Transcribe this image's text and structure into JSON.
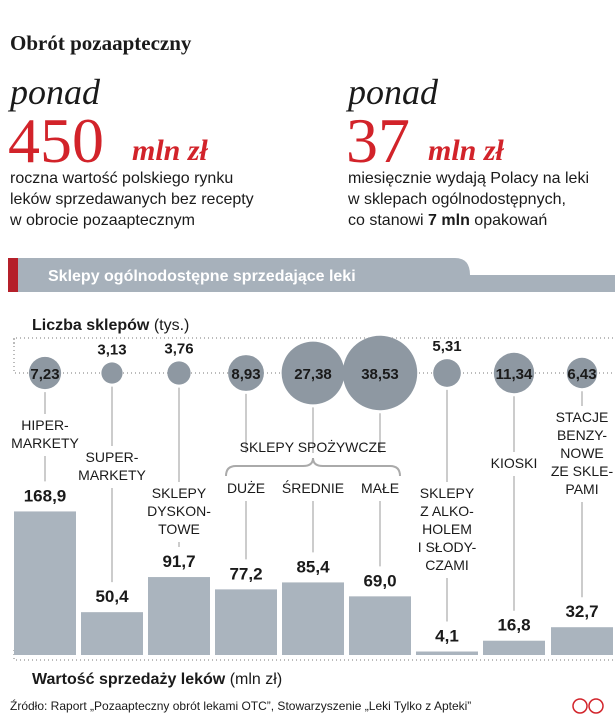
{
  "header": {
    "title": "Obrót pozaapteczny"
  },
  "stats": [
    {
      "prefix": "ponad",
      "number": "450",
      "unit": "mln zł",
      "lines": [
        "roczna wartość polskiego rynku",
        "leków sprzedawanych bez recepty",
        "w obrocie pozaaptecznym"
      ]
    },
    {
      "prefix": "ponad",
      "number": "37",
      "unit": "mln zł",
      "lines": [
        "miesięcznie wydają Polacy na leki",
        "w sklepach ogólnodostępnych,"
      ],
      "last_line": [
        "co stanowi",
        "7 mln",
        "opakowań"
      ]
    }
  ],
  "chart_data": {
    "type": "bubble_bar",
    "title": "Sklepy ogólnodostępne sprzedające leki",
    "categories": [
      "HIPER-\nMARKETY",
      "SUPER-\nMARKETY",
      "SKLEPY\nDYSKON-\nTOWE",
      "DUŻE",
      "ŚREDNIE",
      "MAŁE",
      "SKLEPY\nZ ALKO-\nHOLEM\nI SŁODY-\nCZAMI",
      "KIOSKI",
      "STACJE\nBENZY-\nNOWE\nZE SKLE-\nPAMI"
    ],
    "group_label": "SKLEPY SPOŻYWCZE",
    "series": [
      {
        "name": "Liczba sklepów",
        "unit": "(tys.)",
        "color": "#8e98a2",
        "values": [
          7.23,
          3.13,
          3.76,
          8.93,
          27.38,
          38.53,
          5.31,
          11.34,
          6.43
        ],
        "value_labels": [
          "7,23",
          "3,13",
          "3,76",
          "8,93",
          "27,38",
          "38,53",
          "5,31",
          "11,34",
          "6,43"
        ]
      },
      {
        "name": "Wartość sprzedaży leków",
        "unit": "(mln zł)",
        "color": "#aab4be",
        "values": [
          168.9,
          50.4,
          91.7,
          77.2,
          85.4,
          69.0,
          4.1,
          16.8,
          32.7
        ],
        "value_labels": [
          "168,9",
          "50,4",
          "91,7",
          "77,2",
          "85,4",
          "69,0",
          "4,1",
          "16,8",
          "32,7"
        ]
      }
    ]
  },
  "footer": {
    "source": "Źródło: Raport „Pozaapteczny obrót lekami OTC”, Stowarzyszenie „Leki Tylko z Apteki”"
  }
}
